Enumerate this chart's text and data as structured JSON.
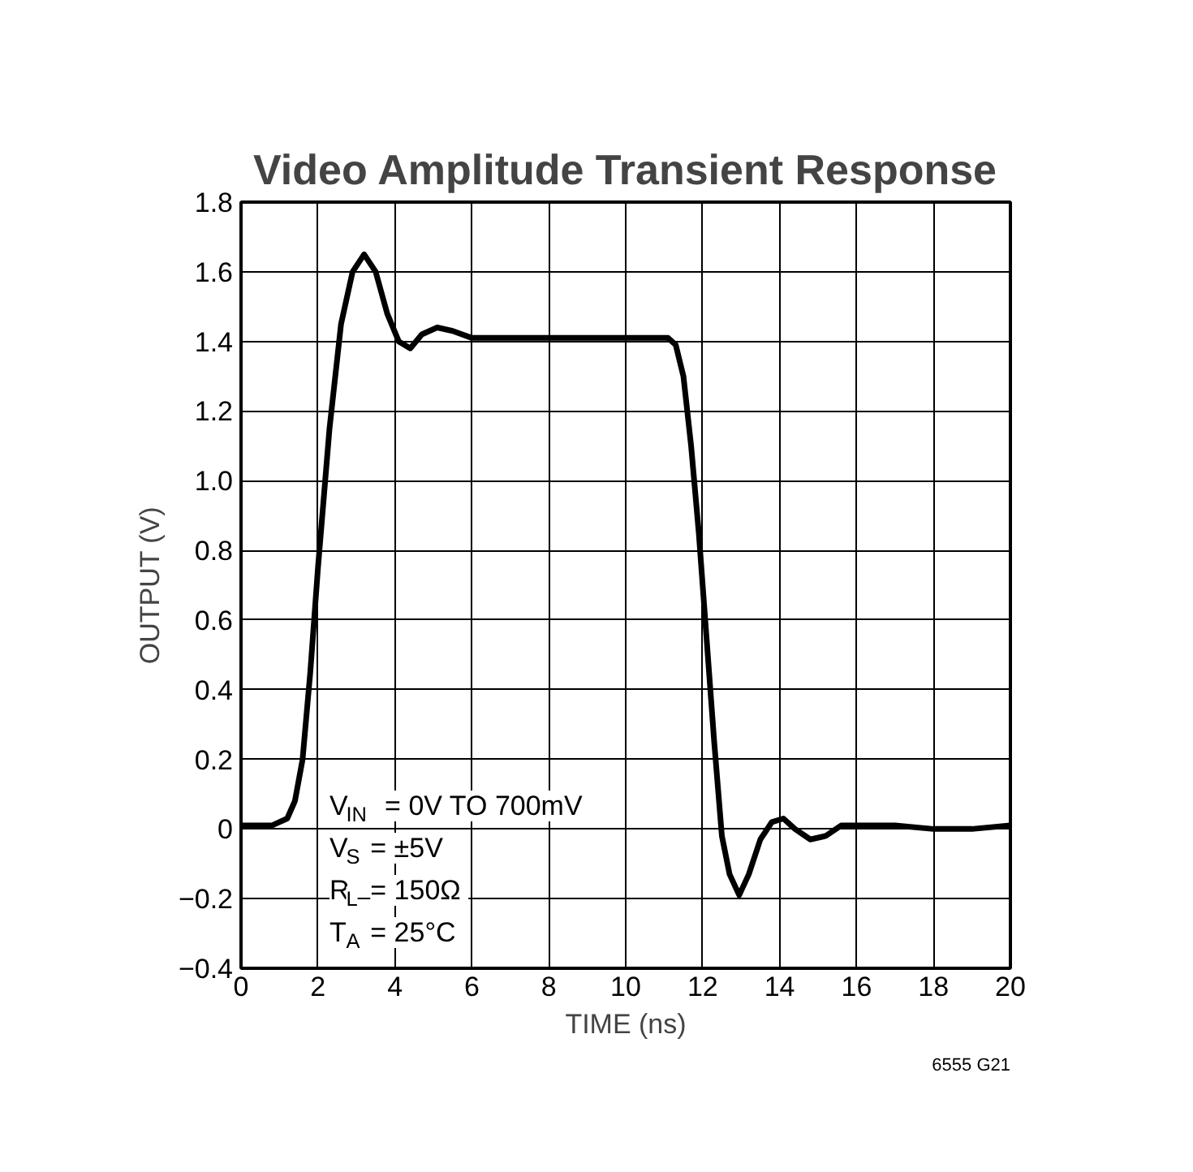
{
  "chart_data": {
    "type": "line",
    "title": "Video Amplitude Transient Response",
    "xlabel": "TIME (ns)",
    "ylabel": "OUTPUT (V)",
    "x": [
      0,
      0.8,
      1.2,
      1.4,
      1.6,
      1.8,
      2.0,
      2.3,
      2.6,
      2.9,
      3.2,
      3.5,
      3.8,
      4.1,
      4.4,
      4.7,
      5.1,
      5.5,
      6.0,
      7,
      8,
      9,
      10,
      10.8,
      11.1,
      11.3,
      11.5,
      11.7,
      11.9,
      12.1,
      12.3,
      12.5,
      12.7,
      12.95,
      13.2,
      13.5,
      13.8,
      14.1,
      14.4,
      14.8,
      15.2,
      15.6,
      16.0,
      17,
      18,
      19,
      20
    ],
    "series": [
      {
        "color": "#000000",
        "values": [
          0.01,
          0.01,
          0.03,
          0.08,
          0.2,
          0.45,
          0.75,
          1.15,
          1.45,
          1.6,
          1.65,
          1.6,
          1.48,
          1.4,
          1.38,
          1.42,
          1.44,
          1.43,
          1.41,
          1.41,
          1.41,
          1.41,
          1.41,
          1.41,
          1.41,
          1.39,
          1.3,
          1.1,
          0.85,
          0.55,
          0.25,
          -0.02,
          -0.13,
          -0.19,
          -0.13,
          -0.03,
          0.02,
          0.03,
          0.0,
          -0.03,
          -0.02,
          0.01,
          0.01,
          0.01,
          0.0,
          0.0,
          0.01
        ]
      }
    ],
    "xlim": [
      0,
      20
    ],
    "ylim": [
      -0.4,
      1.8
    ],
    "xticks": [
      0,
      2,
      4,
      6,
      8,
      10,
      12,
      14,
      16,
      18,
      20
    ],
    "yticks": [
      -0.4,
      -0.2,
      0,
      0.2,
      0.4,
      0.6,
      0.8,
      {
        "value": 1.0,
        "label": "1.0"
      },
      1.2,
      1.4,
      1.6,
      1.8
    ],
    "grid": true,
    "line_style": "solid",
    "marker": "none",
    "annotations": [
      "V$_{IN}$ = 0V TO 700mV",
      "V$_{S}$ = ±5V",
      "R$_{L}$ = 150Ω",
      "T$_{A}$ = 25°C",
      "6555 G21"
    ]
  }
}
